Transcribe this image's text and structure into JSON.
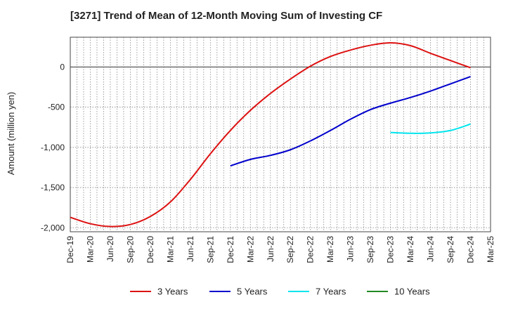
{
  "chart_data": {
    "type": "line",
    "title": "[3271]  Trend of Mean of 12-Month Moving Sum of Investing CF",
    "xlabel": "",
    "ylabel": "Amount (million yen)",
    "x_ticks": [
      "Dec-19",
      "Mar-20",
      "Jun-20",
      "Sep-20",
      "Dec-20",
      "Mar-21",
      "Jun-21",
      "Sep-21",
      "Dec-21",
      "Mar-22",
      "Jun-22",
      "Sep-22",
      "Dec-22",
      "Mar-23",
      "Jun-23",
      "Sep-23",
      "Dec-23",
      "Mar-24",
      "Jun-24",
      "Sep-24",
      "Dec-24",
      "Mar-25"
    ],
    "ylim": [
      -2050,
      370
    ],
    "y_ticks": [
      -2000,
      -1500,
      -1000,
      -500,
      0
    ],
    "y_tick_labels": [
      "-2,000",
      "-1,500",
      "-1,000",
      "-500",
      "0"
    ],
    "grid": true,
    "legend_position": "bottom",
    "series": [
      {
        "name": "3 Years",
        "color": "#dd1111",
        "x": [
          "Dec-19",
          "Mar-20",
          "Jun-20",
          "Sep-20",
          "Dec-20",
          "Mar-21",
          "Jun-21",
          "Sep-21",
          "Dec-21",
          "Mar-22",
          "Jun-22",
          "Sep-22",
          "Dec-22",
          "Mar-23",
          "Jun-23",
          "Sep-23",
          "Dec-23",
          "Mar-24",
          "Jun-24",
          "Sep-24",
          "Dec-24"
        ],
        "values": [
          -1870,
          -1950,
          -1985,
          -1960,
          -1860,
          -1680,
          -1400,
          -1080,
          -790,
          -540,
          -330,
          -150,
          10,
          130,
          210,
          270,
          300,
          265,
          170,
          80,
          -10
        ]
      },
      {
        "name": "5 Years",
        "color": "#0000cc",
        "x": [
          "Dec-21",
          "Mar-22",
          "Jun-22",
          "Sep-22",
          "Dec-22",
          "Mar-23",
          "Jun-23",
          "Sep-23",
          "Dec-23",
          "Mar-24",
          "Jun-24",
          "Sep-24",
          "Dec-24"
        ],
        "values": [
          -1230,
          -1150,
          -1100,
          -1030,
          -920,
          -790,
          -650,
          -530,
          -450,
          -380,
          -300,
          -210,
          -120
        ]
      },
      {
        "name": "7 Years",
        "color": "#00e5ee",
        "x": [
          "Dec-23",
          "Mar-24",
          "Jun-24",
          "Sep-24",
          "Dec-24"
        ],
        "values": [
          -815,
          -825,
          -820,
          -790,
          -710
        ]
      },
      {
        "name": "10 Years",
        "color": "#228822",
        "x": [],
        "values": []
      }
    ]
  }
}
